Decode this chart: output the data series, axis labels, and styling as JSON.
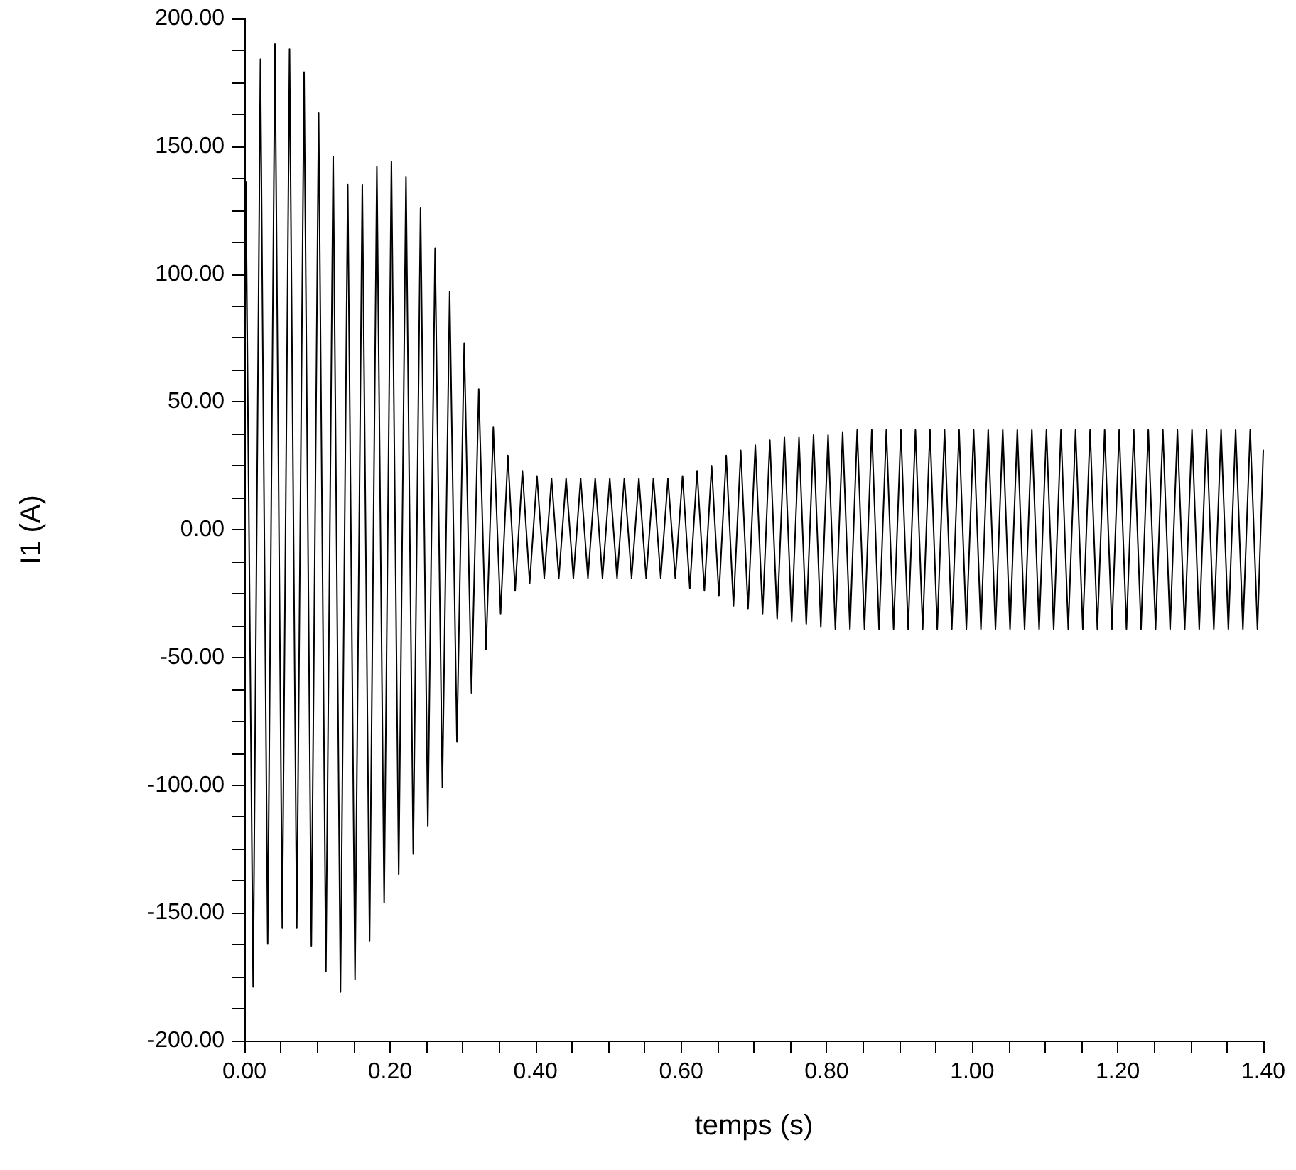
{
  "chart_data": {
    "type": "line",
    "xlabel": "temps (s)",
    "ylabel": "I1 (A)",
    "grid": false,
    "marker": "none",
    "line_style": "solid",
    "xlim": [
      0,
      1.4
    ],
    "xticks": [
      {
        "value": 0,
        "label": "0.00"
      },
      {
        "value": 0.05,
        "label": null
      },
      {
        "value": 0.1,
        "label": null
      },
      {
        "value": 0.15,
        "label": null
      },
      {
        "value": 0.2,
        "label": "0.20"
      },
      {
        "value": 0.25,
        "label": null
      },
      {
        "value": 0.3,
        "label": null
      },
      {
        "value": 0.35,
        "label": null
      },
      {
        "value": 0.4,
        "label": "0.40"
      },
      {
        "value": 0.45,
        "label": null
      },
      {
        "value": 0.5,
        "label": null
      },
      {
        "value": 0.55,
        "label": null
      },
      {
        "value": 0.6,
        "label": "0.60"
      },
      {
        "value": 0.65,
        "label": null
      },
      {
        "value": 0.7,
        "label": null
      },
      {
        "value": 0.75,
        "label": null
      },
      {
        "value": 0.8,
        "label": "0.80"
      },
      {
        "value": 0.85,
        "label": null
      },
      {
        "value": 0.9,
        "label": null
      },
      {
        "value": 0.95,
        "label": null
      },
      {
        "value": 1,
        "label": "1.00"
      },
      {
        "value": 1.05,
        "label": null
      },
      {
        "value": 1.1,
        "label": null
      },
      {
        "value": 1.15,
        "label": null
      },
      {
        "value": 1.2,
        "label": "1.20"
      },
      {
        "value": 1.25,
        "label": null
      },
      {
        "value": 1.3,
        "label": null
      },
      {
        "value": 1.35,
        "label": null
      },
      {
        "value": 1.4,
        "label": "1.40"
      }
    ],
    "ylim": [
      -200,
      200
    ],
    "yticks": [
      {
        "value": -200,
        "label": "-200.00"
      },
      {
        "value": -187.5,
        "label": null
      },
      {
        "value": -175,
        "label": null
      },
      {
        "value": -162.5,
        "label": null
      },
      {
        "value": -150,
        "label": "-150.00"
      },
      {
        "value": -137.5,
        "label": null
      },
      {
        "value": -125,
        "label": null
      },
      {
        "value": -112.5,
        "label": null
      },
      {
        "value": -100,
        "label": "-100.00"
      },
      {
        "value": -87.5,
        "label": null
      },
      {
        "value": -75,
        "label": null
      },
      {
        "value": -62.5,
        "label": null
      },
      {
        "value": -50,
        "label": "-50.00"
      },
      {
        "value": -37.5,
        "label": null
      },
      {
        "value": -25,
        "label": null
      },
      {
        "value": -12.5,
        "label": null
      },
      {
        "value": 0,
        "label": "0.00"
      },
      {
        "value": 12.5,
        "label": null
      },
      {
        "value": 25,
        "label": null
      },
      {
        "value": 37.5,
        "label": null
      },
      {
        "value": 50,
        "label": "50.00"
      },
      {
        "value": 62.5,
        "label": null
      },
      {
        "value": 75,
        "label": null
      },
      {
        "value": 87.5,
        "label": null
      },
      {
        "value": 100,
        "label": "100.00"
      },
      {
        "value": 112.5,
        "label": null
      },
      {
        "value": 125,
        "label": null
      },
      {
        "value": 137.5,
        "label": null
      },
      {
        "value": 150,
        "label": "150.00"
      },
      {
        "value": 162.5,
        "label": null
      },
      {
        "value": 175,
        "label": null
      },
      {
        "value": 187.5,
        "label": null
      },
      {
        "value": 200,
        "label": "200.00"
      }
    ],
    "series": [
      {
        "color": "#000000",
        "x": [
          0,
          0.002,
          0.012,
          0.022,
          0.032,
          0.042,
          0.052,
          0.062,
          0.072,
          0.082,
          0.092,
          0.102,
          0.112,
          0.122,
          0.132,
          0.142,
          0.152,
          0.162,
          0.172,
          0.182,
          0.192,
          0.202,
          0.212,
          0.222,
          0.232,
          0.242,
          0.252,
          0.262,
          0.272,
          0.282,
          0.292,
          0.302,
          0.312,
          0.322,
          0.332,
          0.342,
          0.352,
          0.362,
          0.372,
          0.382,
          0.392,
          0.402,
          0.412,
          0.422,
          0.432,
          0.442,
          0.452,
          0.462,
          0.472,
          0.482,
          0.492,
          0.502,
          0.512,
          0.522,
          0.532,
          0.542,
          0.552,
          0.562,
          0.572,
          0.582,
          0.592,
          0.602,
          0.612,
          0.622,
          0.632,
          0.642,
          0.652,
          0.662,
          0.672,
          0.682,
          0.692,
          0.702,
          0.712,
          0.722,
          0.732,
          0.742,
          0.752,
          0.762,
          0.772,
          0.782,
          0.792,
          0.802,
          0.812,
          0.822,
          0.832,
          0.842,
          0.852,
          0.862,
          0.872,
          0.882,
          0.892,
          0.902,
          0.912,
          0.922,
          0.932,
          0.942,
          0.952,
          0.962,
          0.972,
          0.982,
          0.992,
          1.002,
          1.012,
          1.022,
          1.032,
          1.042,
          1.052,
          1.062,
          1.072,
          1.082,
          1.092,
          1.102,
          1.112,
          1.122,
          1.132,
          1.142,
          1.152,
          1.162,
          1.172,
          1.182,
          1.192,
          1.202,
          1.212,
          1.222,
          1.232,
          1.242,
          1.252,
          1.262,
          1.272,
          1.282,
          1.292,
          1.302,
          1.312,
          1.322,
          1.332,
          1.342,
          1.352,
          1.362,
          1.372,
          1.382,
          1.392,
          1.4
        ],
        "values": [
          0,
          136,
          -179,
          184,
          -162,
          190,
          -156,
          188,
          -156,
          179,
          -163,
          163,
          -173,
          146,
          -181,
          135,
          -176,
          135,
          -161,
          142,
          -146,
          144,
          -135,
          138,
          -127,
          126,
          -116,
          110,
          -101,
          93,
          -83,
          73,
          -64,
          55,
          -47,
          40,
          -33,
          29,
          -24,
          23,
          -21,
          21,
          -19,
          20,
          -19,
          20,
          -19,
          20,
          -19,
          20,
          -19,
          20,
          -19,
          20,
          -19,
          20,
          -19,
          20,
          -19,
          20,
          -19,
          21,
          -23,
          23,
          -24,
          25,
          -26,
          29,
          -30,
          31,
          -31,
          33,
          -33,
          35,
          -35,
          36,
          -36,
          36,
          -37,
          37,
          -38,
          37,
          -39,
          38,
          -39,
          39,
          -39,
          39,
          -39,
          39,
          -39,
          39,
          -39,
          39,
          -39,
          39,
          -39,
          39,
          -39,
          39,
          -39,
          39,
          -39,
          39,
          -39,
          39,
          -39,
          39,
          -39,
          39,
          -39,
          39,
          -39,
          39,
          -39,
          39,
          -39,
          39,
          -39,
          39,
          -39,
          39,
          -39,
          39,
          -39,
          39,
          -39,
          39,
          -39,
          39,
          -39,
          39,
          -39,
          39,
          -39,
          39,
          -39,
          39,
          -39,
          39,
          -39,
          31
        ]
      }
    ]
  }
}
